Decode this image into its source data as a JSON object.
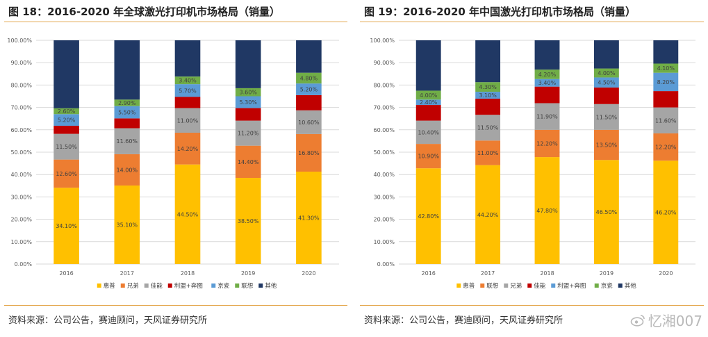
{
  "colors": {
    "惠普": "#ffc000",
    "兄弟": "#ed7d31",
    "联想": "#ed7d31",
    "佳能": "#a5a5a5",
    "利盟+奔图": "#c00000",
    "京瓷": "#5b9bd5",
    "联想_green": "#70ad47",
    "其他": "#203864",
    "rule": "#e3a54a"
  },
  "chart_data": [
    {
      "type": "bar",
      "stacked": true,
      "title": "图 18：2016-2020 年全球激光打印机市场格局（销量）",
      "categories": [
        "2016",
        "2017",
        "2018",
        "2019",
        "2020"
      ],
      "ylim": [
        0,
        100
      ],
      "yticks": [
        "0.00%",
        "10.00%",
        "20.00%",
        "30.00%",
        "40.00%",
        "50.00%",
        "60.00%",
        "70.00%",
        "80.00%",
        "90.00%",
        "100.00%"
      ],
      "legend_position": "bottom",
      "series": [
        {
          "name": "惠普",
          "color": "#ffc000",
          "values": [
            34.1,
            35.1,
            44.5,
            38.5,
            41.3
          ],
          "labels": [
            "34.10%",
            "35.10%",
            "44.50%",
            "38.50%",
            "41.30%"
          ]
        },
        {
          "name": "兄弟",
          "color": "#ed7d31",
          "values": [
            12.6,
            14.0,
            14.2,
            14.4,
            16.8
          ],
          "labels": [
            "12.60%",
            "14.00%",
            "14.20%",
            "14.40%",
            "16.80%"
          ]
        },
        {
          "name": "佳能",
          "color": "#a5a5a5",
          "values": [
            11.5,
            11.6,
            11.0,
            11.2,
            10.6
          ],
          "labels": [
            "11.50%",
            "11.60%",
            "11.00%",
            "11.20%",
            "10.60%"
          ]
        },
        {
          "name": "利盟+奔图",
          "color": "#c00000",
          "values": [
            3.6,
            4.4,
            5.0,
            5.6,
            6.8
          ],
          "labels": null
        },
        {
          "name": "京瓷",
          "color": "#5b9bd5",
          "values": [
            5.2,
            5.5,
            5.7,
            5.3,
            5.2
          ],
          "labels": [
            "5.20%",
            "5.50%",
            "5.70%",
            "5.30%",
            "5.20%"
          ]
        },
        {
          "name": "联想",
          "color": "#70ad47",
          "values": [
            2.6,
            2.9,
            3.4,
            3.6,
            4.8
          ],
          "labels": [
            "2.60%",
            "2.90%",
            "3.40%",
            "3.60%",
            "4.80%"
          ]
        },
        {
          "name": "其他",
          "color": "#203864",
          "values": [
            30.4,
            26.5,
            16.2,
            21.4,
            14.5
          ],
          "labels": null
        }
      ]
    },
    {
      "type": "bar",
      "stacked": true,
      "title": "图 19：2016-2020 年中国激光打印机市场格局（销量）",
      "categories": [
        "2016",
        "2017",
        "2018",
        "2019",
        "2020"
      ],
      "ylim": [
        0,
        100
      ],
      "yticks": [
        "0.00%",
        "10.00%",
        "20.00%",
        "30.00%",
        "40.00%",
        "50.00%",
        "60.00%",
        "70.00%",
        "80.00%",
        "90.00%",
        "100.00%"
      ],
      "legend_position": "bottom",
      "series": [
        {
          "name": "惠普",
          "color": "#ffc000",
          "values": [
            42.8,
            44.2,
            47.8,
            46.5,
            46.2
          ],
          "labels": [
            "42.80%",
            "44.20%",
            "47.80%",
            "46.50%",
            "46.20%"
          ]
        },
        {
          "name": "联想",
          "color": "#ed7d31",
          "values": [
            10.9,
            11.0,
            12.2,
            13.5,
            12.2
          ],
          "labels": [
            "10.90%",
            "11.00%",
            "12.20%",
            "13.50%",
            "12.20%"
          ]
        },
        {
          "name": "兄弟",
          "color": "#a5a5a5",
          "values": [
            10.4,
            11.5,
            11.9,
            11.5,
            11.6
          ],
          "labels": [
            "10.40%",
            "11.50%",
            "11.90%",
            "11.50%",
            "11.60%"
          ]
        },
        {
          "name": "佳能",
          "color": "#c00000",
          "values": [
            7.0,
            7.2,
            7.4,
            7.4,
            7.3
          ],
          "labels": null
        },
        {
          "name": "利盟+奔图",
          "color": "#5b9bd5",
          "values": [
            2.4,
            3.1,
            3.4,
            4.5,
            8.2
          ],
          "labels": [
            "2.40%",
            "3.10%",
            "3.40%",
            "4.50%",
            "8.20%"
          ]
        },
        {
          "name": "京瓷",
          "color": "#70ad47",
          "values": [
            4.0,
            4.3,
            4.2,
            4.0,
            4.1
          ],
          "labels": [
            "4.00%",
            "4.30%",
            "4.20%",
            "4.00%",
            "4.10%"
          ]
        },
        {
          "name": "其他",
          "color": "#203864",
          "values": [
            22.5,
            18.7,
            13.1,
            12.6,
            10.4
          ],
          "labels": null
        }
      ]
    }
  ],
  "source_text": "资料来源：公司公告，赛迪顾问，天风证券研究所",
  "watermark_text": "忆湘007",
  "watermark_icon": "weibo-icon"
}
